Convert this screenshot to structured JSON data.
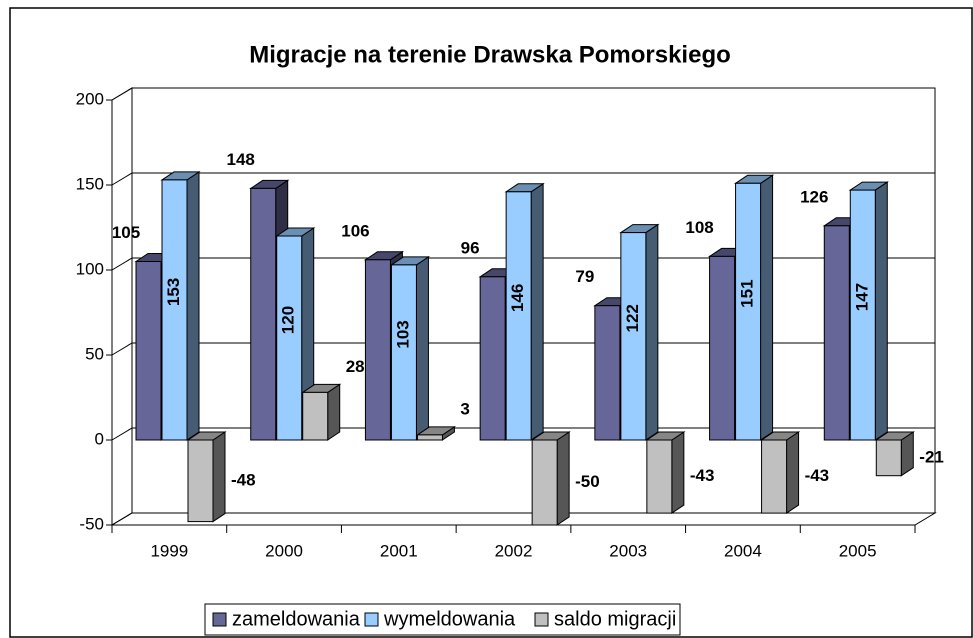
{
  "chart_data": {
    "type": "bar3d",
    "title": "Migracje na terenie Drawska Pomorskiego",
    "categories": [
      "1999",
      "2000",
      "2001",
      "2002",
      "2003",
      "2004",
      "2005"
    ],
    "series": [
      {
        "name": "zameldowania",
        "color": "#666699",
        "values": [
          105,
          148,
          106,
          96,
          79,
          108,
          126
        ]
      },
      {
        "name": "wymeldowania",
        "color": "#99ccff",
        "values": [
          153,
          120,
          103,
          146,
          122,
          151,
          147
        ]
      },
      {
        "name": "saldo migracji",
        "color": "#c0c0c0",
        "values": [
          -48,
          28,
          3,
          -50,
          -43,
          -43,
          -21
        ]
      }
    ],
    "ylim": [
      -50,
      200
    ],
    "yticks": [
      -50,
      0,
      50,
      100,
      150,
      200
    ],
    "grid": true,
    "legend": "bottom"
  }
}
